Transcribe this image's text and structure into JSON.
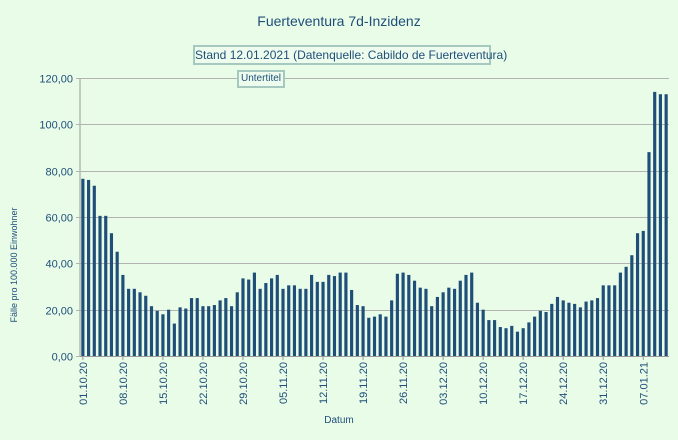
{
  "chart_data": {
    "type": "bar",
    "title": "Fuerteventura 7d-Inzidenz",
    "subtitle": "Stand 12.01.2021 (Datenquelle: Cabildo de Fuerteventura)",
    "placeholder": "Untertitel",
    "xlabel": "Datum",
    "ylabel": "Fälle pro 100.000 Einwohner",
    "ylim": [
      0,
      120
    ],
    "yticks": [
      "0,00",
      "20,00",
      "40,00",
      "60,00",
      "80,00",
      "100,00",
      "120,00"
    ],
    "grid": true,
    "bar_color": "#1f4e79",
    "start_date": "01.10.20",
    "x_tick_labels": [
      "01.10.20",
      "08.10.20",
      "15.10.20",
      "22.10.20",
      "29.10.20",
      "05.11.20",
      "12.11.20",
      "19.11.20",
      "26.11.20",
      "03.12.20",
      "10.12.20",
      "17.12.20",
      "24.12.20",
      "31.12.20",
      "07.01.21"
    ],
    "values": [
      76.5,
      76,
      73.5,
      60.5,
      60.5,
      53,
      45,
      35,
      29,
      29,
      27.5,
      26,
      21.5,
      19.5,
      18,
      20,
      14,
      21,
      20.5,
      25,
      25,
      21.5,
      21.5,
      22,
      24,
      25,
      21.5,
      27.5,
      33.5,
      33,
      36,
      29,
      31.5,
      33.5,
      35,
      29,
      30.5,
      30.5,
      29,
      29,
      35,
      32,
      32,
      35,
      34.5,
      36,
      36,
      28.5,
      22,
      21.5,
      16.5,
      17,
      18,
      17,
      24,
      35.5,
      36,
      35,
      32.5,
      29.5,
      29,
      21.5,
      25.5,
      27.5,
      29.5,
      29,
      32.5,
      35,
      36,
      23,
      20,
      15.5,
      15.5,
      12.5,
      12,
      13,
      10.5,
      12,
      14.5,
      17,
      19.5,
      19,
      22.5,
      25.5,
      24,
      23,
      22.5,
      21,
      23.5,
      24,
      25,
      30.5,
      30.5,
      30.5,
      36,
      38.5,
      43.5,
      53,
      54,
      88,
      114,
      113,
      113
    ]
  }
}
